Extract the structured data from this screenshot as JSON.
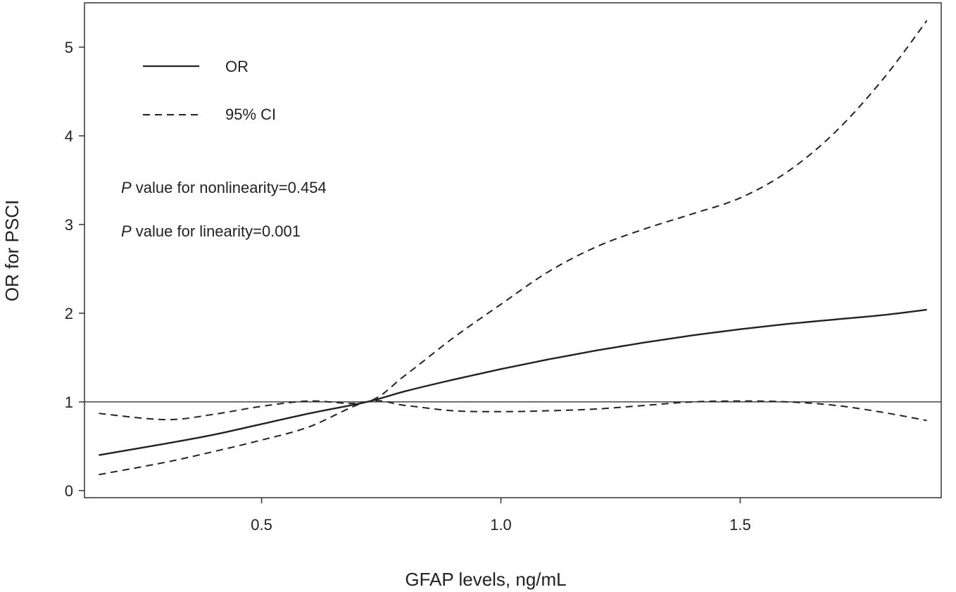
{
  "chart_data": {
    "type": "line",
    "title": "",
    "xlabel": "GFAP levels, ng/mL",
    "ylabel": "OR for PSCI",
    "xlim": [
      0.13,
      1.92
    ],
    "ylim": [
      -0.08,
      5.5
    ],
    "xticks": [
      0.5,
      1.0,
      1.5
    ],
    "xtick_labels": [
      "0.5",
      "1.0",
      "1.5"
    ],
    "yticks": [
      0,
      1,
      2,
      3,
      4,
      5
    ],
    "ytick_labels": [
      "0",
      "1",
      "2",
      "3",
      "4",
      "5"
    ],
    "reference_line": {
      "y": 1
    },
    "grid": false,
    "legend": {
      "placement": "top-left",
      "entries": [
        {
          "label": "OR",
          "style": "solid"
        },
        {
          "label": "95% CI",
          "style": "dashed"
        }
      ]
    },
    "annotations": [
      {
        "italic": "P",
        "text": " value for nonlinearity=0.454"
      },
      {
        "italic": "P",
        "text": " value for linearity=0.001"
      }
    ],
    "series": [
      {
        "name": "OR",
        "style": "solid",
        "x": [
          0.16,
          0.3,
          0.4,
          0.5,
          0.6,
          0.72,
          0.8,
          0.9,
          1.0,
          1.1,
          1.2,
          1.3,
          1.4,
          1.5,
          1.6,
          1.7,
          1.8,
          1.89
        ],
        "y": [
          0.4,
          0.53,
          0.63,
          0.75,
          0.87,
          1.0,
          1.12,
          1.25,
          1.37,
          1.48,
          1.58,
          1.67,
          1.75,
          1.82,
          1.88,
          1.93,
          1.98,
          2.04
        ]
      },
      {
        "name": "95% CI upper",
        "style": "dashed",
        "x": [
          0.16,
          0.3,
          0.4,
          0.5,
          0.6,
          0.72,
          0.8,
          0.9,
          1.0,
          1.1,
          1.2,
          1.3,
          1.4,
          1.5,
          1.6,
          1.7,
          1.8,
          1.89
        ],
        "y": [
          0.87,
          0.8,
          0.86,
          0.95,
          1.01,
          1.0,
          1.3,
          1.72,
          2.1,
          2.47,
          2.75,
          2.95,
          3.12,
          3.3,
          3.6,
          4.05,
          4.65,
          5.3
        ]
      },
      {
        "name": "95% CI lower",
        "style": "dashed",
        "x": [
          0.16,
          0.3,
          0.4,
          0.5,
          0.6,
          0.72,
          0.8,
          0.9,
          1.0,
          1.1,
          1.2,
          1.3,
          1.4,
          1.5,
          1.6,
          1.7,
          1.8,
          1.89
        ],
        "y": [
          0.18,
          0.32,
          0.44,
          0.57,
          0.72,
          1.0,
          0.96,
          0.9,
          0.89,
          0.9,
          0.92,
          0.96,
          1.0,
          1.01,
          1.0,
          0.96,
          0.88,
          0.79
        ]
      }
    ]
  }
}
